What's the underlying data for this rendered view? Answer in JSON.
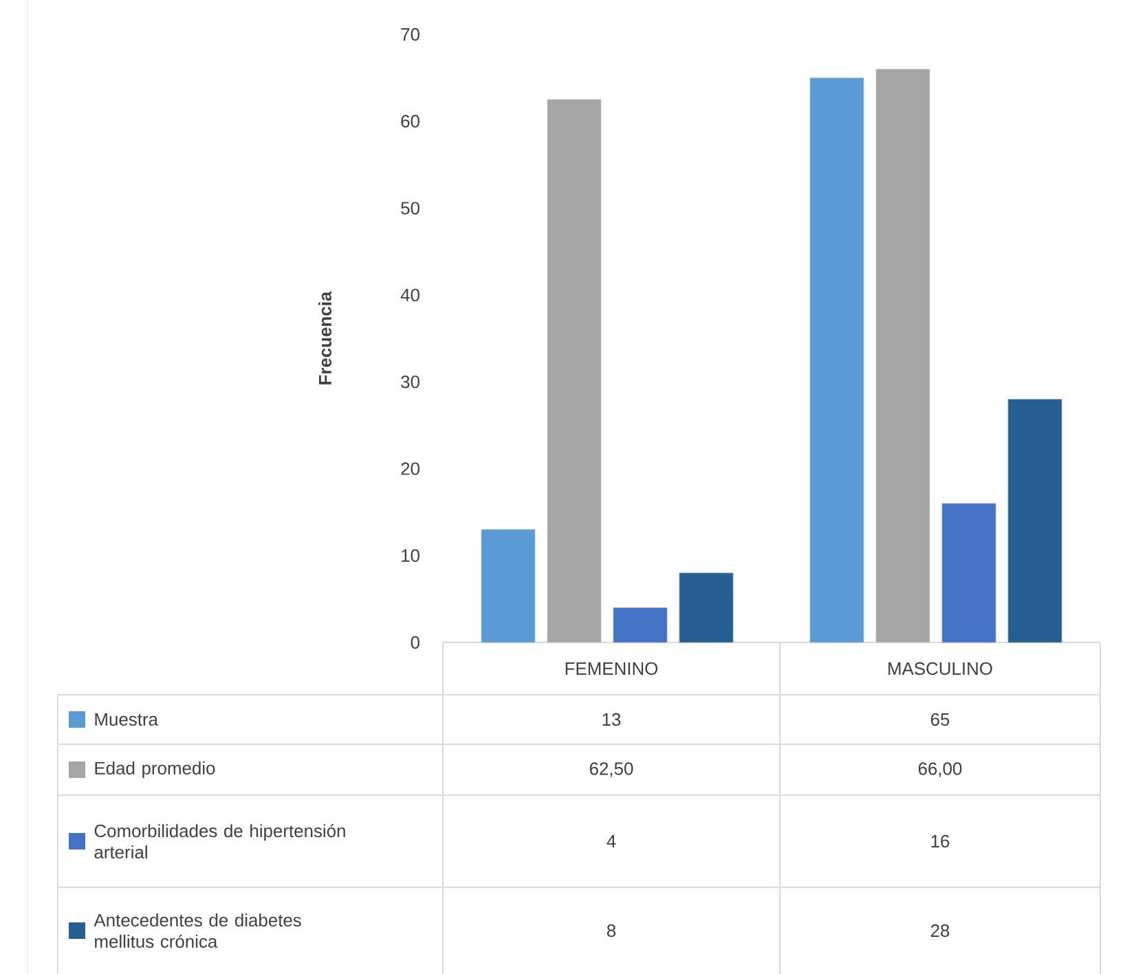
{
  "chart_data": {
    "type": "bar",
    "ylabel": "Frecuencia",
    "categories": [
      "FEMENINO",
      "MASCULINO"
    ],
    "series": [
      {
        "name": "Muestra",
        "color": "#5b9bd5",
        "values": [
          13,
          65
        ],
        "value_labels": [
          "13",
          "65"
        ]
      },
      {
        "name": "Edad promedio",
        "color": "#a5a5a5",
        "values": [
          62.5,
          66
        ],
        "value_labels": [
          "62,50",
          "66,00"
        ]
      },
      {
        "name": "Comorbilidades de hipertensión arterial",
        "color": "#4472c4",
        "values": [
          4,
          16
        ],
        "value_labels": [
          "4",
          "16"
        ]
      },
      {
        "name": "Antecedentes de diabetes mellitus crónica",
        "color": "#255e91",
        "values": [
          8,
          28
        ],
        "value_labels": [
          "8",
          "28"
        ]
      }
    ],
    "ylim": [
      0,
      70
    ],
    "yticks": [
      0,
      10,
      20,
      30,
      40,
      50,
      60,
      70
    ],
    "legend": "bottom",
    "grid": false
  }
}
